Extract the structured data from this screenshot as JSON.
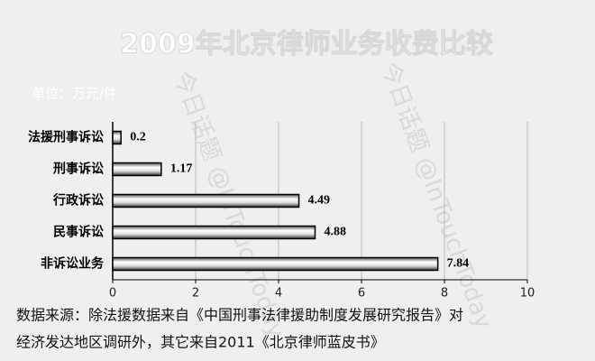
{
  "chart_data": {
    "type": "bar",
    "orientation": "horizontal",
    "title": "2009年北京律师业务收费比较",
    "unit_label": "单位：万元/件",
    "categories": [
      "法援刑事诉讼",
      "刑事诉讼",
      "行政诉讼",
      "民事诉讼",
      "非诉讼业务"
    ],
    "values": [
      0.2,
      1.17,
      4.49,
      4.88,
      7.84
    ],
    "xlim": [
      0,
      10
    ],
    "xticks": [
      0,
      2,
      4,
      6,
      8,
      10
    ],
    "grid": true,
    "source": [
      "数据来源：除法援数据来自《中国刑事法律援助制度发展研究报告》对",
      "经济发达地区调研外，其它来自2011《北京律师蓝皮书》"
    ],
    "watermark": "今日话题 @InTouchToday"
  }
}
